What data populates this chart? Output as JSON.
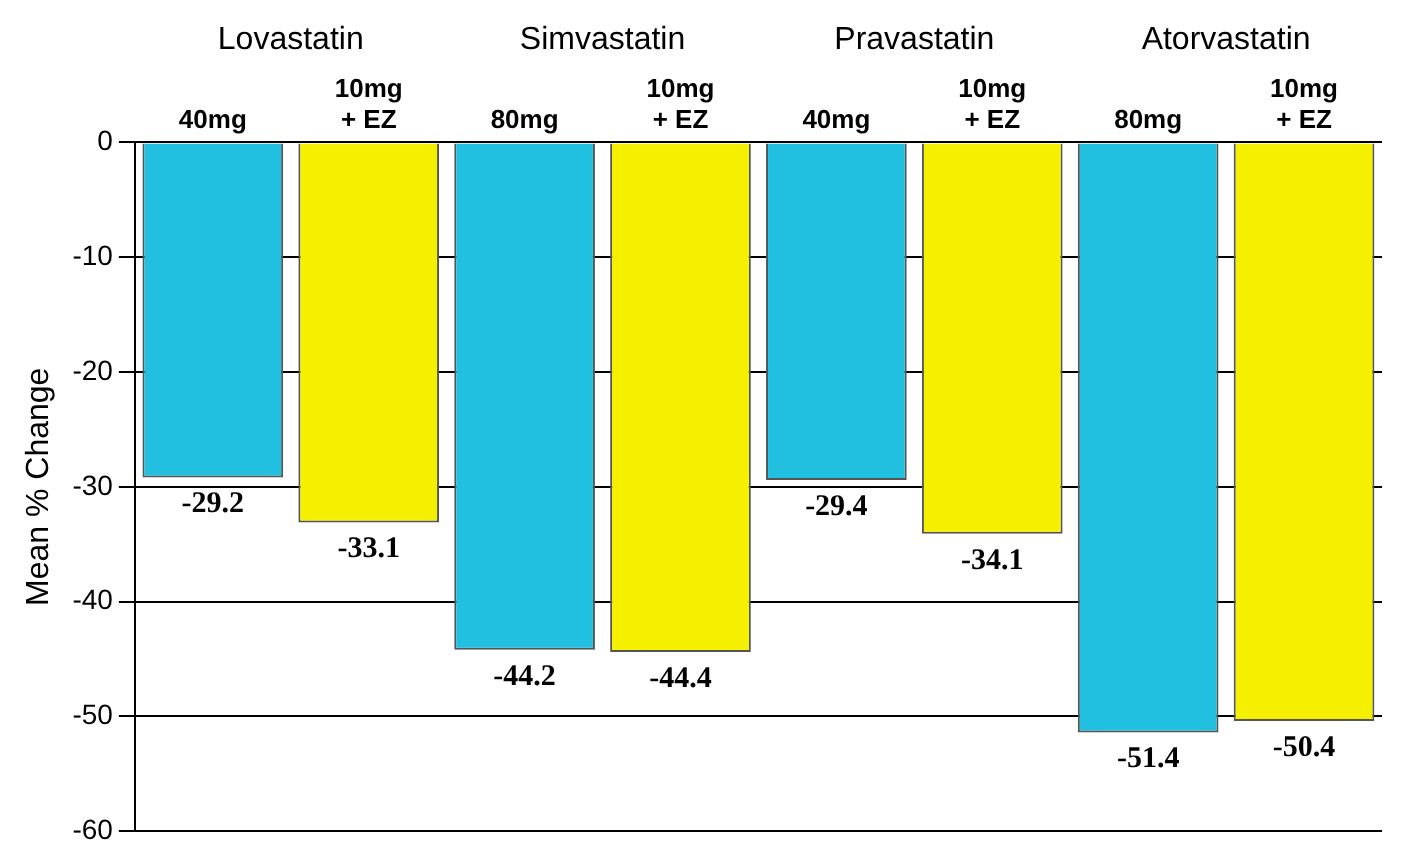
{
  "chart_data": {
    "type": "bar",
    "ylabel": "Mean % Change",
    "categories": [
      "40mg",
      "10mg\n+ EZ",
      "80mg",
      "10mg\n+ EZ",
      "40mg",
      "10mg\n+ EZ",
      "80mg",
      "10mg\n+ EZ"
    ],
    "values": [
      -29.2,
      -33.1,
      -44.2,
      -44.4,
      -29.4,
      -34.1,
      -51.4,
      -50.4
    ],
    "colors": [
      "#22c0e0",
      "#f5f000",
      "#22c0e0",
      "#f5f000",
      "#22c0e0",
      "#f5f000",
      "#22c0e0",
      "#f5f000"
    ],
    "ylim": [
      -60,
      0
    ],
    "yticks": [
      0,
      -10,
      -20,
      -30,
      -40,
      -50,
      -60
    ],
    "grid": "y",
    "data_labels": true,
    "annotations": [
      "Lovastatin",
      "Simvastatin",
      "Pravastatin",
      "Atorvastatin"
    ]
  }
}
